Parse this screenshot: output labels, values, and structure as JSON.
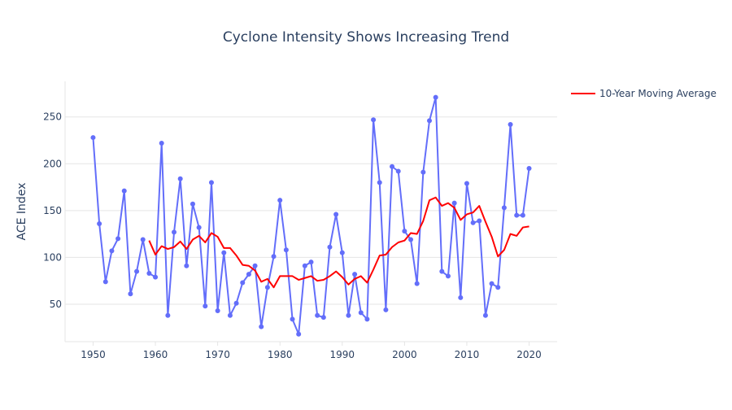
{
  "chart_data": {
    "type": "line",
    "title": "Cyclone Intensity Shows Increasing Trend",
    "xlabel": "",
    "ylabel": "ACE Index",
    "xlim": [
      1945.5,
      2024.5
    ],
    "ylim": [
      10,
      288
    ],
    "x_ticks": [
      1950,
      1960,
      1970,
      1980,
      1990,
      2000,
      2010,
      2020
    ],
    "y_ticks": [
      50,
      100,
      150,
      200,
      250
    ],
    "grid": "horizontal",
    "legend_position": "top-right",
    "colors": {
      "series_ace": "#636efa",
      "series_ma": "#ff0000",
      "grid": "#e5e5e5",
      "text": "#2a3f5f"
    },
    "series": [
      {
        "name": "",
        "mode": "lines+markers",
        "color": "#636efa",
        "x": [
          1950,
          1951,
          1952,
          1953,
          1954,
          1955,
          1956,
          1957,
          1958,
          1959,
          1960,
          1961,
          1962,
          1963,
          1964,
          1965,
          1966,
          1967,
          1968,
          1969,
          1970,
          1971,
          1972,
          1973,
          1974,
          1975,
          1976,
          1977,
          1978,
          1979,
          1980,
          1981,
          1982,
          1983,
          1984,
          1985,
          1986,
          1987,
          1988,
          1989,
          1990,
          1991,
          1992,
          1993,
          1994,
          1995,
          1996,
          1997,
          1998,
          1999,
          2000,
          2001,
          2002,
          2003,
          2004,
          2005,
          2006,
          2007,
          2008,
          2009,
          2010,
          2011,
          2012,
          2013,
          2014,
          2015,
          2016,
          2017,
          2018,
          2019,
          2020
        ],
        "y": [
          228,
          136,
          74,
          107,
          120,
          171,
          61,
          85,
          119,
          83,
          79,
          222,
          38,
          127,
          184,
          91,
          157,
          132,
          48,
          180,
          43,
          105,
          38,
          51,
          73,
          82,
          91,
          26,
          68,
          101,
          161,
          108,
          34,
          18,
          91,
          95,
          38,
          36,
          111,
          146,
          105,
          38,
          82,
          41,
          34,
          247,
          180,
          44,
          197,
          192,
          128,
          119,
          72,
          191,
          246,
          271,
          85,
          80,
          158,
          57,
          179,
          137,
          139,
          38,
          72,
          68,
          153,
          242,
          145,
          145,
          195
        ]
      },
      {
        "name": "10-Year Moving Average",
        "mode": "lines",
        "color": "#ff0000",
        "x": [
          1959,
          1960,
          1961,
          1962,
          1963,
          1964,
          1965,
          1966,
          1967,
          1968,
          1969,
          1970,
          1971,
          1972,
          1973,
          1974,
          1975,
          1976,
          1977,
          1978,
          1979,
          1980,
          1981,
          1982,
          1983,
          1984,
          1985,
          1986,
          1987,
          1988,
          1989,
          1990,
          1991,
          1992,
          1993,
          1994,
          1995,
          1996,
          1997,
          1998,
          1999,
          2000,
          2001,
          2002,
          2003,
          2004,
          2005,
          2006,
          2007,
          2008,
          2009,
          2010,
          2011,
          2012,
          2013,
          2014,
          2015,
          2016,
          2017,
          2018,
          2019,
          2020
        ],
        "y": [
          118,
          103,
          112,
          109,
          111,
          117,
          109,
          119,
          123,
          116,
          126,
          122,
          110,
          110,
          102,
          92,
          91,
          86,
          74,
          77,
          68,
          80,
          80,
          80,
          76,
          78,
          80,
          75,
          76,
          80,
          85,
          79,
          71,
          77,
          80,
          73,
          87,
          102,
          103,
          111,
          116,
          118,
          126,
          125,
          139,
          161,
          164,
          155,
          158,
          153,
          140,
          146,
          148,
          155,
          138,
          122,
          101,
          108,
          125,
          123,
          132,
          133
        ]
      }
    ]
  }
}
